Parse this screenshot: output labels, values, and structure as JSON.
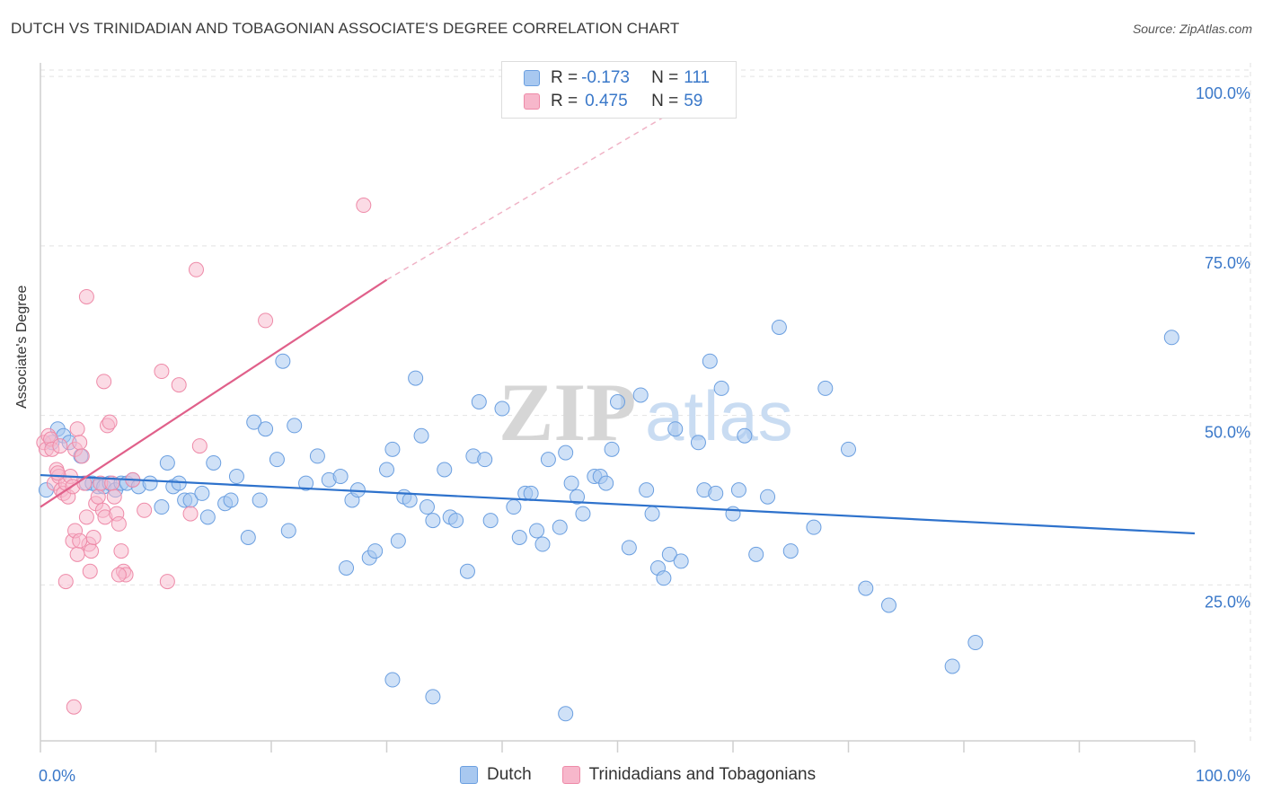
{
  "header": {
    "title": "DUTCH VS TRINIDADIAN AND TOBAGONIAN ASSOCIATE'S DEGREE CORRELATION CHART",
    "source": "Source: ZipAtlas.com"
  },
  "legend": {
    "rows": [
      {
        "r_label": "R =",
        "r_value": "-0.173",
        "n_label": "N =",
        "n_value": "111"
      },
      {
        "r_label": "R =",
        "r_value": "0.475",
        "n_label": "N =",
        "n_value": "59"
      }
    ],
    "bottom": [
      {
        "label": "Dutch"
      },
      {
        "label": "Trinidadians and Tobagonians"
      }
    ]
  },
  "colors": {
    "dutch_fill": "#a8c8f0",
    "dutch_stroke": "#6b9fe0",
    "dutch_line": "#2e72cc",
    "trini_fill": "#f7b7cb",
    "trini_stroke": "#ee8aa8",
    "trini_line": "#e0608a",
    "axis_text": "#3a78c9",
    "grid": "#e2e2e2"
  },
  "watermark": {
    "zip": "ZIP",
    "atlas": "atlas"
  },
  "chart_data": {
    "type": "scatter",
    "title": "DUTCH VS TRINIDADIAN AND TOBAGONIAN ASSOCIATE'S DEGREE CORRELATION CHART",
    "xlabel": "",
    "ylabel": "Associate's Degree",
    "xlim": [
      0,
      100
    ],
    "ylim": [
      2,
      102
    ],
    "x_tick_labels": [
      {
        "value": 0,
        "label": "0.0%"
      },
      {
        "value": 100,
        "label": "100.0%"
      }
    ],
    "y_tick_labels": [
      {
        "value": 25,
        "label": "25.0%"
      },
      {
        "value": 50,
        "label": "50.0%"
      },
      {
        "value": 75,
        "label": "75.0%"
      },
      {
        "value": 100,
        "label": "100.0%"
      }
    ],
    "series": [
      {
        "name": "Dutch",
        "r": -0.173,
        "n": 111,
        "trend": {
          "x": [
            0,
            100
          ],
          "y": [
            41.2,
            32.6
          ]
        },
        "points": [
          [
            0.5,
            39
          ],
          [
            1,
            46
          ],
          [
            1.5,
            48
          ],
          [
            2,
            47
          ],
          [
            2.5,
            46
          ],
          [
            3.5,
            44
          ],
          [
            4,
            40
          ],
          [
            4.5,
            40
          ],
          [
            5,
            39.5
          ],
          [
            5.5,
            39.5
          ],
          [
            6,
            40
          ],
          [
            6.5,
            39
          ],
          [
            7,
            40
          ],
          [
            7.5,
            40
          ],
          [
            8,
            40.5
          ],
          [
            8.5,
            39.5
          ],
          [
            9.5,
            40
          ],
          [
            10.5,
            36.5
          ],
          [
            11,
            43
          ],
          [
            11.5,
            39.5
          ],
          [
            12,
            40
          ],
          [
            12.5,
            37.5
          ],
          [
            13,
            37.5
          ],
          [
            14,
            38.5
          ],
          [
            14.5,
            35
          ],
          [
            15,
            43
          ],
          [
            16,
            37
          ],
          [
            16.5,
            37.5
          ],
          [
            17,
            41
          ],
          [
            18,
            32
          ],
          [
            18.5,
            49
          ],
          [
            19,
            37.5
          ],
          [
            19.5,
            48
          ],
          [
            20.5,
            43.5
          ],
          [
            21,
            58
          ],
          [
            21.5,
            33
          ],
          [
            22,
            48.5
          ],
          [
            23,
            40
          ],
          [
            24,
            44
          ],
          [
            25,
            40.5
          ],
          [
            26,
            41
          ],
          [
            26.5,
            27.5
          ],
          [
            27,
            37.5
          ],
          [
            27.5,
            39
          ],
          [
            28.5,
            29
          ],
          [
            29,
            30
          ],
          [
            30,
            42
          ],
          [
            30.5,
            45
          ],
          [
            31,
            31.5
          ],
          [
            31.5,
            38
          ],
          [
            32,
            37.5
          ],
          [
            32.5,
            55.5
          ],
          [
            33,
            47
          ],
          [
            33.5,
            36.5
          ],
          [
            34,
            34.5
          ],
          [
            35,
            42
          ],
          [
            35.5,
            35
          ],
          [
            36,
            34.5
          ],
          [
            37,
            27
          ],
          [
            37.5,
            44
          ],
          [
            38,
            52
          ],
          [
            38.5,
            43.5
          ],
          [
            39,
            34.5
          ],
          [
            40,
            51
          ],
          [
            41,
            36.5
          ],
          [
            41.5,
            32
          ],
          [
            42,
            38.5
          ],
          [
            42.5,
            38.5
          ],
          [
            43,
            33
          ],
          [
            43.5,
            31
          ],
          [
            44,
            43.5
          ],
          [
            45,
            33.5
          ],
          [
            45.5,
            44.5
          ],
          [
            46,
            40
          ],
          [
            46.5,
            38
          ],
          [
            47,
            35.5
          ],
          [
            48,
            41
          ],
          [
            48.5,
            41
          ],
          [
            49,
            40
          ],
          [
            49.5,
            45
          ],
          [
            50,
            52
          ],
          [
            51,
            30.5
          ],
          [
            52,
            53
          ],
          [
            52.5,
            39
          ],
          [
            53,
            35.5
          ],
          [
            53.5,
            27.5
          ],
          [
            54,
            26
          ],
          [
            54.5,
            29.5
          ],
          [
            55,
            48
          ],
          [
            55.5,
            28.5
          ],
          [
            57,
            46
          ],
          [
            57.5,
            39
          ],
          [
            58,
            58
          ],
          [
            58.5,
            38.5
          ],
          [
            59,
            54
          ],
          [
            60,
            35.5
          ],
          [
            60.5,
            39
          ],
          [
            61,
            47
          ],
          [
            62,
            29.5
          ],
          [
            63,
            38
          ],
          [
            64,
            63
          ],
          [
            65,
            30
          ],
          [
            67,
            33.5
          ],
          [
            68,
            54
          ],
          [
            70,
            45
          ],
          [
            71.5,
            24.5
          ],
          [
            73.5,
            22
          ],
          [
            79,
            13
          ],
          [
            81,
            16.5
          ],
          [
            98,
            61.5
          ],
          [
            30.5,
            11
          ],
          [
            34,
            8.5
          ],
          [
            45.5,
            6
          ]
        ]
      },
      {
        "name": "Trinidadians and Tobagonians",
        "r": 0.475,
        "n": 59,
        "trend": {
          "x": [
            0,
            30
          ],
          "y": [
            36.5,
            70
          ]
        },
        "trend_dashed": {
          "x": [
            30,
            55
          ],
          "y": [
            70,
            95
          ]
        },
        "points": [
          [
            0.3,
            46
          ],
          [
            0.5,
            45
          ],
          [
            0.7,
            47
          ],
          [
            0.9,
            46.5
          ],
          [
            1,
            45
          ],
          [
            1.2,
            40
          ],
          [
            1.4,
            42
          ],
          [
            1.6,
            41
          ],
          [
            1.8,
            39
          ],
          [
            2,
            38.5
          ],
          [
            2.2,
            40
          ],
          [
            2.4,
            38
          ],
          [
            2.6,
            41
          ],
          [
            2.8,
            39.5
          ],
          [
            3,
            45
          ],
          [
            3.2,
            48
          ],
          [
            3.4,
            46
          ],
          [
            3.6,
            44
          ],
          [
            3.8,
            40
          ],
          [
            4,
            35
          ],
          [
            4.2,
            31
          ],
          [
            4.4,
            30
          ],
          [
            4.6,
            32
          ],
          [
            4.8,
            37
          ],
          [
            5,
            38
          ],
          [
            5.2,
            40
          ],
          [
            5.4,
            36
          ],
          [
            5.6,
            35
          ],
          [
            5.8,
            48.5
          ],
          [
            6,
            49
          ],
          [
            6.2,
            40
          ],
          [
            6.4,
            38
          ],
          [
            6.6,
            35.5
          ],
          [
            6.8,
            34
          ],
          [
            7,
            30
          ],
          [
            7.2,
            27
          ],
          [
            7.4,
            26.5
          ],
          [
            8,
            40.5
          ],
          [
            9,
            36
          ],
          [
            10.5,
            56.5
          ],
          [
            11,
            25.5
          ],
          [
            12,
            54.5
          ],
          [
            13,
            35.5
          ],
          [
            13.5,
            71.5
          ],
          [
            13.8,
            45.5
          ],
          [
            19.5,
            64
          ],
          [
            28,
            81
          ],
          [
            4,
            67.5
          ],
          [
            5.5,
            55
          ],
          [
            2.2,
            25.5
          ],
          [
            2.8,
            31.5
          ],
          [
            3.2,
            29.5
          ],
          [
            4.3,
            27
          ],
          [
            6.8,
            26.5
          ],
          [
            2.9,
            7
          ],
          [
            3,
            33
          ],
          [
            3.4,
            31.5
          ],
          [
            1.5,
            41.5
          ],
          [
            1.7,
            45.5
          ]
        ]
      }
    ]
  }
}
